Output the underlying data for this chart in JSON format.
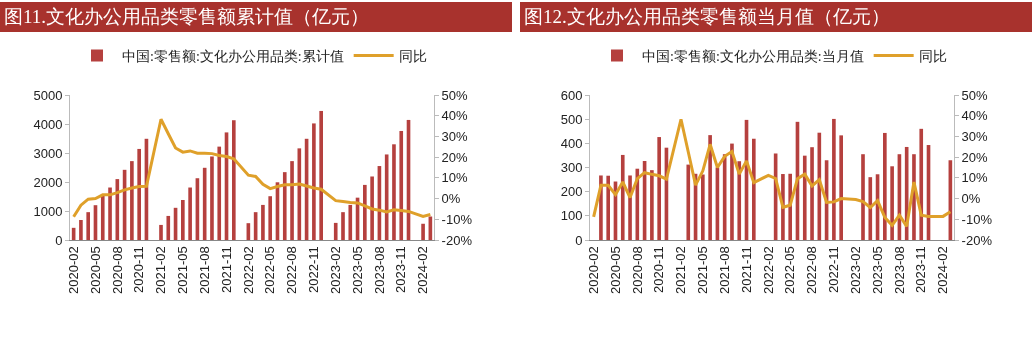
{
  "chart_data": [
    {
      "type": "bar",
      "title": "图11.文化办公用品类零售额累计值（亿元）",
      "categories": [
        "2020-02",
        null,
        null,
        "2020-05",
        null,
        null,
        "2020-08",
        null,
        null,
        "2020-11",
        null,
        null,
        "2021-02",
        null,
        null,
        "2021-05",
        null,
        null,
        "2021-08",
        null,
        null,
        "2021-11",
        null,
        null,
        "2022-02",
        null,
        null,
        "2022-05",
        null,
        null,
        "2022-08",
        null,
        null,
        "2022-11",
        null,
        null,
        "2023-02",
        null,
        null,
        "2023-05",
        null,
        null,
        "2023-08",
        null,
        null,
        "2023-11",
        null,
        null,
        "2024-02",
        null
      ],
      "series": [
        {
          "name": "中国:零售额:文化办公用品类:累计值",
          "color": "#b5403e",
          "values": [
            420,
            690,
            960,
            1200,
            1520,
            1810,
            2100,
            2420,
            2720,
            3140,
            3490,
            null,
            520,
            830,
            1110,
            1380,
            1810,
            2130,
            2490,
            2880,
            3220,
            3710,
            4130,
            null,
            580,
            960,
            1210,
            1510,
            1990,
            2340,
            2720,
            3160,
            3490,
            4020,
            4450,
            null,
            590,
            960,
            1210,
            1460,
            1900,
            2190,
            2550,
            2950,
            3300,
            3760,
            4140,
            null,
            560,
            810
          ]
        },
        {
          "type": "line",
          "axis": "y2",
          "name": "同比",
          "color": "#dfa02a",
          "values": [
            -8.8,
            -3.2,
            -0.3,
            0,
            1.8,
            1.8,
            2.9,
            4.2,
            5.1,
            5.8,
            5.9,
            null,
            38.3,
            31.3,
            24.4,
            22.4,
            23,
            21.9,
            21.9,
            21.7,
            20.8,
            20.3,
            19.2,
            null,
            11.3,
            10.7,
            6.9,
            4.8,
            5.8,
            6.7,
            6.7,
            7,
            6.1,
            5.1,
            4.5,
            null,
            -1,
            -1.4,
            -1.9,
            -2.1,
            -3.5,
            -5,
            -5.6,
            -6.5,
            -5.4,
            -5.8,
            -6.2,
            null,
            -8.6,
            -7.7
          ]
        }
      ],
      "ylim": [
        0,
        5000
      ],
      "yticks": [
        0,
        1000,
        2000,
        3000,
        4000,
        5000
      ],
      "y2lim": [
        -20,
        50
      ],
      "y2ticks": [
        {
          "value": -20,
          "label": "-20%"
        },
        {
          "value": -10,
          "label": "-10%"
        },
        {
          "value": 0,
          "label": "0%"
        },
        {
          "value": 10,
          "label": "10%"
        },
        {
          "value": 20,
          "label": "20%"
        },
        {
          "value": 30,
          "label": "30%"
        },
        {
          "value": 40,
          "label": "40%"
        },
        {
          "value": 50,
          "label": "50%"
        }
      ],
      "grid": false,
      "legend": "top"
    },
    {
      "type": "bar",
      "title": "图12.文化办公用品类零售额当月值（亿元）",
      "categories": [
        "2020-02",
        null,
        null,
        "2020-05",
        null,
        null,
        "2020-08",
        null,
        null,
        "2020-11",
        null,
        null,
        "2021-02",
        null,
        null,
        "2021-05",
        null,
        null,
        "2021-08",
        null,
        null,
        "2021-11",
        null,
        null,
        "2022-02",
        null,
        null,
        "2022-05",
        null,
        null,
        "2022-08",
        null,
        null,
        "2022-11",
        null,
        null,
        "2023-02",
        null,
        null,
        "2023-05",
        null,
        null,
        "2023-08",
        null,
        null,
        "2023-11",
        null,
        null,
        "2024-02",
        null
      ],
      "series": [
        {
          "name": "中国:零售额:文化办公用品类:当月值",
          "color": "#b5403e",
          "values": [
            null,
            267,
            266,
            242,
            352,
            267,
            295,
            327,
            289,
            426,
            382,
            null,
            null,
            312,
            274,
            271,
            434,
            300,
            355,
            399,
            326,
            497,
            419,
            null,
            null,
            358,
            273,
            274,
            489,
            349,
            384,
            444,
            330,
            501,
            433,
            null,
            null,
            355,
            260,
            272,
            443,
            305,
            355,
            385,
            355,
            460,
            393,
            null,
            null,
            330
          ]
        },
        {
          "type": "line",
          "axis": "y2",
          "name": "同比",
          "color": "#dfa02a",
          "values": [
            -8.8,
            6.4,
            6.4,
            1.9,
            8,
            0.5,
            9.6,
            12.5,
            11.7,
            11,
            9.4,
            null,
            38.3,
            22.5,
            6.5,
            13.4,
            26.2,
            15,
            20.4,
            22.7,
            11.8,
            18.2,
            7.7,
            null,
            11.2,
            9.7,
            -4.2,
            -3.2,
            9.6,
            11.8,
            6.1,
            9.1,
            -1.9,
            -1.6,
            0,
            null,
            -0.5,
            -1.5,
            -4.3,
            -1,
            -9.1,
            -12.9,
            -8,
            -13.4,
            8,
            -8,
            -8.6,
            null,
            -8.6,
            -6.4
          ]
        }
      ],
      "ylim": [
        0,
        600
      ],
      "yticks": [
        0,
        100,
        200,
        300,
        400,
        500,
        600
      ],
      "y2lim": [
        -20,
        50
      ],
      "y2ticks": [
        {
          "value": -20,
          "label": "-20%"
        },
        {
          "value": -10,
          "label": "-10%"
        },
        {
          "value": 0,
          "label": "0%"
        },
        {
          "value": 10,
          "label": "10%"
        },
        {
          "value": 20,
          "label": "20%"
        },
        {
          "value": 30,
          "label": "30%"
        },
        {
          "value": 40,
          "label": "40%"
        },
        {
          "value": 50,
          "label": "50%"
        }
      ],
      "grid": false,
      "legend": "top"
    }
  ]
}
